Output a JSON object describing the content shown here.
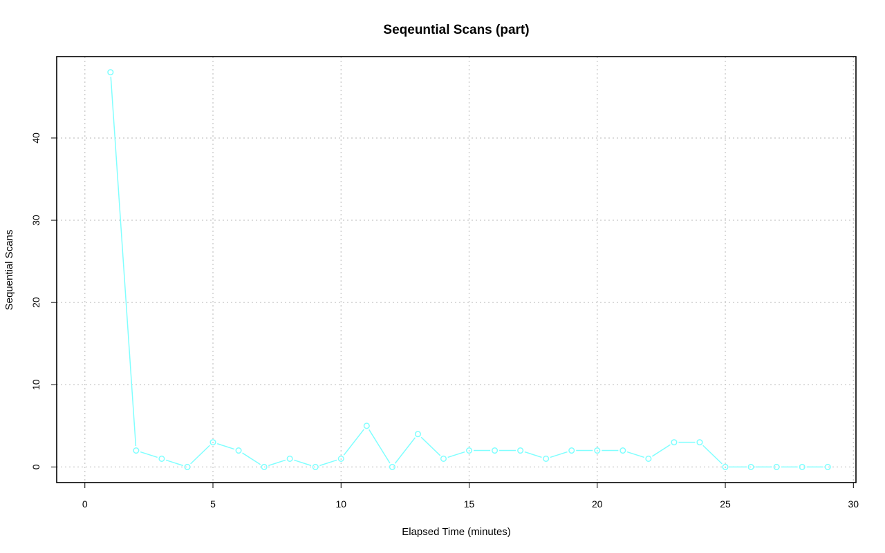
{
  "chart_data": {
    "type": "line",
    "title": "Seqeuntial Scans (part)",
    "xlabel": "Elapsed Time (minutes)",
    "ylabel": "Sequential Scans",
    "xlim": [
      -1.1,
      30.1
    ],
    "ylim": [
      -1.9,
      49.9
    ],
    "xticks": [
      0,
      5,
      10,
      15,
      20,
      25,
      30
    ],
    "yticks": [
      0,
      10,
      20,
      30,
      40
    ],
    "grid": true,
    "series": [
      {
        "color": "#80ffff",
        "marker": "circle-open",
        "x": [
          1,
          2,
          3,
          4,
          5,
          6,
          7,
          8,
          9,
          10,
          11,
          12,
          13,
          14,
          15,
          16,
          17,
          18,
          19,
          20,
          21,
          22,
          23,
          24,
          25,
          26,
          27,
          28,
          29
        ],
        "y": [
          48,
          2,
          1,
          0,
          3,
          2,
          0,
          1,
          0,
          1,
          5,
          0,
          4,
          1,
          2,
          2,
          2,
          1,
          2,
          2,
          2,
          1,
          3,
          3,
          0,
          0,
          0,
          0,
          0
        ]
      }
    ]
  }
}
